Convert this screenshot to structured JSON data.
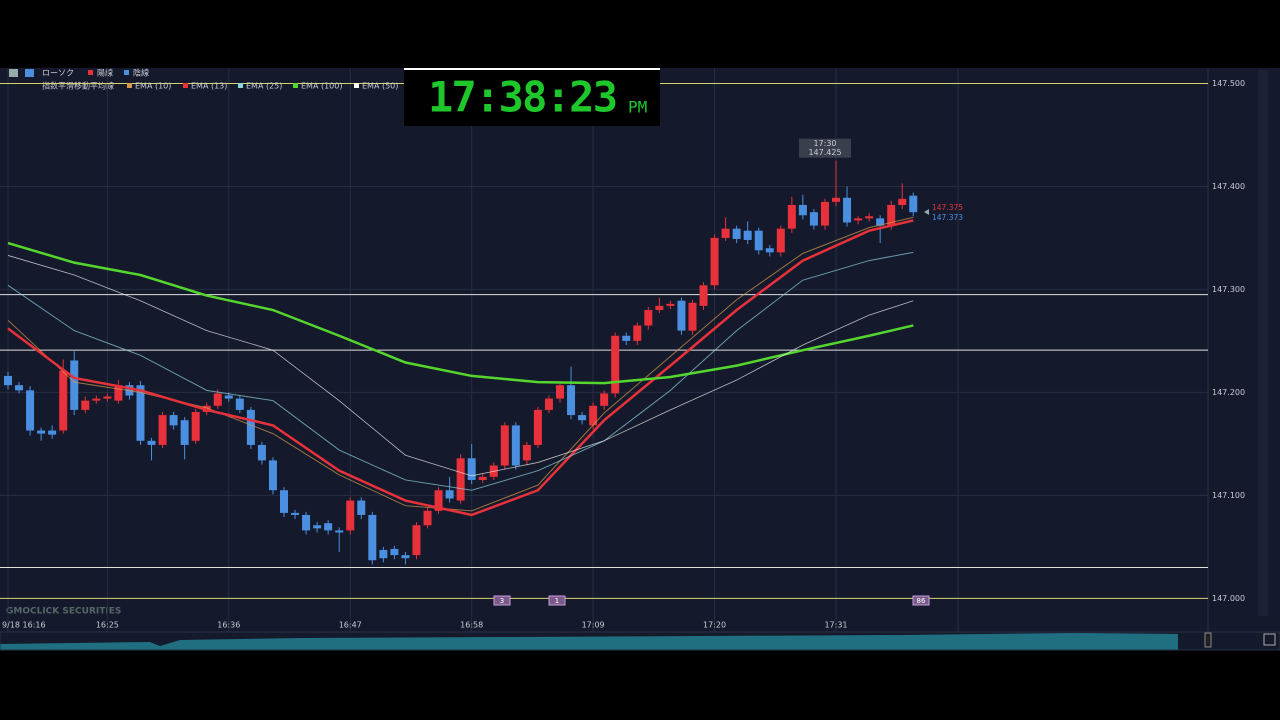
{
  "legend": {
    "chart_type": "ローソク",
    "up_label": "陽線",
    "down_label": "陰線",
    "indicator": "指数平滑移動平均線"
  },
  "clock": {
    "time": "17:38:23",
    "period": "PM"
  },
  "watermark": "GMOCLICK SECURITIES",
  "chart_data": {
    "type": "candlestick",
    "categories": [
      "9/18 16:16",
      null,
      null,
      null,
      null,
      null,
      null,
      null,
      null,
      "16:25",
      null,
      null,
      null,
      null,
      null,
      null,
      null,
      null,
      null,
      null,
      "16:36",
      null,
      null,
      null,
      null,
      null,
      null,
      null,
      null,
      null,
      null,
      "16:47",
      null,
      null,
      null,
      null,
      null,
      null,
      null,
      null,
      null,
      null,
      "16:58",
      null,
      null,
      null,
      null,
      null,
      null,
      null,
      null,
      null,
      null,
      "17:09",
      null,
      null,
      null,
      null,
      null,
      null,
      null,
      null,
      null,
      null,
      "17:20",
      null,
      null,
      null,
      null,
      null,
      null,
      null,
      null,
      null,
      null,
      "17:31",
      null,
      null,
      null,
      null,
      null,
      null,
      null
    ],
    "open": [
      147.216,
      147.207,
      147.202,
      147.163,
      147.163,
      147.163,
      147.231,
      147.183,
      147.192,
      147.194,
      147.192,
      147.207,
      147.207,
      147.153,
      147.149,
      147.178,
      147.173,
      147.153,
      147.181,
      147.187,
      147.197,
      147.194,
      147.183,
      147.149,
      147.134,
      147.105,
      147.083,
      147.081,
      147.071,
      147.073,
      147.066,
      147.066,
      147.095,
      147.081,
      147.047,
      147.048,
      147.042,
      147.042,
      147.071,
      147.085,
      147.105,
      147.095,
      147.136,
      147.115,
      147.118,
      147.129,
      147.168,
      147.134,
      147.149,
      147.183,
      147.194,
      147.207,
      147.178,
      147.168,
      147.187,
      147.199,
      147.255,
      147.25,
      147.265,
      147.28,
      147.284,
      147.289,
      147.26,
      147.284,
      147.304,
      147.35,
      147.359,
      147.357,
      147.357,
      147.34,
      147.336,
      147.359,
      147.382,
      147.375,
      147.362,
      147.385,
      147.389,
      147.367,
      147.369,
      147.369,
      147.362,
      147.382,
      147.391
    ],
    "high": [
      147.22,
      147.21,
      147.206,
      147.166,
      147.168,
      147.232,
      147.24,
      147.196,
      147.197,
      147.199,
      147.212,
      147.21,
      147.211,
      147.156,
      147.181,
      147.181,
      147.176,
      147.184,
      147.19,
      147.203,
      147.2,
      147.197,
      147.186,
      147.152,
      147.137,
      147.108,
      147.086,
      147.084,
      147.074,
      147.076,
      147.069,
      147.098,
      147.098,
      147.084,
      147.05,
      147.051,
      147.045,
      147.074,
      147.088,
      147.108,
      147.118,
      147.14,
      147.15,
      147.121,
      147.132,
      147.171,
      147.171,
      147.152,
      147.186,
      147.197,
      147.21,
      147.225,
      147.181,
      147.19,
      147.202,
      147.258,
      147.258,
      147.268,
      147.283,
      147.292,
      147.289,
      147.292,
      147.29,
      147.307,
      147.353,
      147.37,
      147.362,
      147.366,
      147.36,
      147.343,
      147.362,
      147.39,
      147.392,
      147.378,
      147.388,
      147.425,
      147.4,
      147.371,
      147.374,
      147.372,
      147.386,
      147.403,
      147.394
    ],
    "low": [
      147.203,
      147.199,
      147.158,
      147.153,
      147.155,
      147.16,
      147.178,
      147.18,
      147.189,
      147.191,
      147.189,
      147.193,
      147.149,
      147.134,
      147.146,
      147.164,
      147.135,
      147.15,
      147.178,
      147.184,
      147.191,
      147.18,
      147.145,
      147.13,
      147.101,
      147.079,
      147.077,
      147.062,
      147.064,
      147.062,
      147.045,
      147.062,
      147.077,
      147.033,
      147.035,
      147.038,
      147.033,
      147.038,
      147.068,
      147.082,
      147.093,
      147.092,
      147.111,
      147.112,
      147.115,
      147.125,
      147.125,
      147.13,
      147.146,
      147.18,
      147.19,
      147.174,
      147.169,
      147.164,
      147.183,
      147.195,
      147.246,
      147.246,
      147.261,
      147.277,
      147.281,
      147.256,
      147.256,
      147.28,
      147.3,
      147.347,
      147.345,
      147.344,
      147.334,
      147.332,
      147.332,
      147.355,
      147.368,
      147.358,
      147.358,
      147.381,
      147.361,
      147.363,
      147.366,
      147.345,
      147.358,
      147.378,
      147.371
    ],
    "close": [
      147.207,
      147.202,
      147.163,
      147.16,
      147.159,
      147.221,
      147.183,
      147.192,
      147.194,
      147.196,
      147.207,
      147.197,
      147.153,
      147.149,
      147.178,
      147.168,
      147.149,
      147.181,
      147.187,
      147.199,
      147.194,
      147.183,
      147.149,
      147.134,
      147.105,
      147.083,
      147.081,
      147.066,
      147.068,
      147.066,
      147.064,
      147.095,
      147.081,
      147.037,
      147.039,
      147.042,
      147.039,
      147.071,
      147.085,
      147.105,
      147.097,
      147.136,
      147.115,
      147.118,
      147.129,
      147.168,
      147.129,
      147.149,
      147.183,
      147.194,
      147.207,
      147.178,
      147.173,
      147.187,
      147.199,
      147.255,
      147.25,
      147.265,
      147.28,
      147.284,
      147.286,
      147.26,
      147.287,
      147.304,
      147.35,
      147.359,
      147.349,
      147.348,
      147.338,
      147.336,
      147.359,
      147.382,
      147.372,
      147.362,
      147.385,
      147.389,
      147.365,
      147.369,
      147.371,
      147.362,
      147.382,
      147.388,
      147.375
    ],
    "up_color": "#e8313a",
    "down_color": "#4a8fe0",
    "ylim": [
      146.979,
      147.515
    ],
    "yticks": [
      {
        "value": 147.0,
        "label": "147.000"
      },
      {
        "value": 147.1,
        "label": "147.100"
      },
      {
        "value": 147.2,
        "label": "147.200"
      },
      {
        "value": 147.3,
        "label": "147.300"
      },
      {
        "value": 147.4,
        "label": "147.400"
      },
      {
        "value": 147.5,
        "label": "147.500"
      }
    ],
    "grid": true,
    "series": [
      {
        "name": "EMA (10)",
        "color": "#d89a4a",
        "width": 1,
        "x": [
          0,
          6,
          12,
          18,
          24,
          30,
          36,
          42,
          48,
          54,
          60,
          66,
          72,
          78,
          82
        ],
        "values": [
          147.27,
          147.21,
          147.2,
          147.185,
          147.16,
          147.12,
          147.09,
          147.085,
          147.11,
          147.18,
          147.235,
          147.29,
          147.335,
          147.36,
          147.37
        ]
      },
      {
        "name": "EMA (13)",
        "color": "#e8313a",
        "width": 2.5,
        "x": [
          0,
          6,
          12,
          18,
          24,
          30,
          36,
          42,
          48,
          54,
          60,
          66,
          72,
          78,
          82
        ],
        "values": [
          147.262,
          147.214,
          147.202,
          147.183,
          147.168,
          147.124,
          147.095,
          147.081,
          147.105,
          147.173,
          147.226,
          147.28,
          147.328,
          147.357,
          147.367
        ]
      },
      {
        "name": "EMA (25)",
        "color": "#8fd3e0",
        "width": 1,
        "x": [
          0,
          6,
          12,
          18,
          24,
          30,
          36,
          42,
          48,
          54,
          60,
          66,
          72,
          78,
          82
        ],
        "values": [
          147.304,
          147.26,
          147.236,
          147.202,
          147.192,
          147.144,
          147.115,
          147.105,
          147.124,
          147.153,
          147.202,
          147.26,
          147.309,
          147.328,
          147.336
        ]
      },
      {
        "name": "EMA (100)",
        "color": "#55d62e",
        "width": 2.5,
        "x": [
          0,
          6,
          12,
          18,
          24,
          30,
          36,
          42,
          48,
          54,
          60,
          66,
          72,
          78,
          82
        ],
        "values": [
          147.345,
          147.326,
          147.314,
          147.294,
          147.28,
          147.255,
          147.229,
          147.216,
          147.21,
          147.209,
          147.215,
          147.226,
          147.241,
          147.255,
          147.265
        ]
      },
      {
        "name": "EMA (50)",
        "color": "#ffffff",
        "width": 0.8,
        "x": [
          0,
          6,
          12,
          18,
          24,
          30,
          36,
          42,
          48,
          54,
          60,
          66,
          72,
          78,
          82
        ],
        "values": [
          147.333,
          147.314,
          147.289,
          147.26,
          147.241,
          147.192,
          147.139,
          147.119,
          147.132,
          147.153,
          147.183,
          147.212,
          147.246,
          147.275,
          147.289
        ]
      }
    ],
    "hlines": [
      {
        "value": 147.5,
        "color": "#d8d26a"
      },
      {
        "value": 147.295,
        "color": "#e0e0e0"
      },
      {
        "value": 147.241,
        "color": "#e0e0e0"
      },
      {
        "value": 147.03,
        "color": "#e0e0e0"
      },
      {
        "value": 147.0,
        "color": "#d8d26a"
      }
    ],
    "tooltip": {
      "time": "17:30",
      "price": {
        "value": 147.425,
        "label": "147.425"
      }
    },
    "last_price_labels": [
      {
        "value": 147.375,
        "label": "147.375",
        "color": "#e8313a"
      },
      {
        "value": 147.373,
        "label": "147.373",
        "color": "#4a8fe0"
      }
    ],
    "event_markers": [
      "3",
      "1",
      "86"
    ]
  }
}
